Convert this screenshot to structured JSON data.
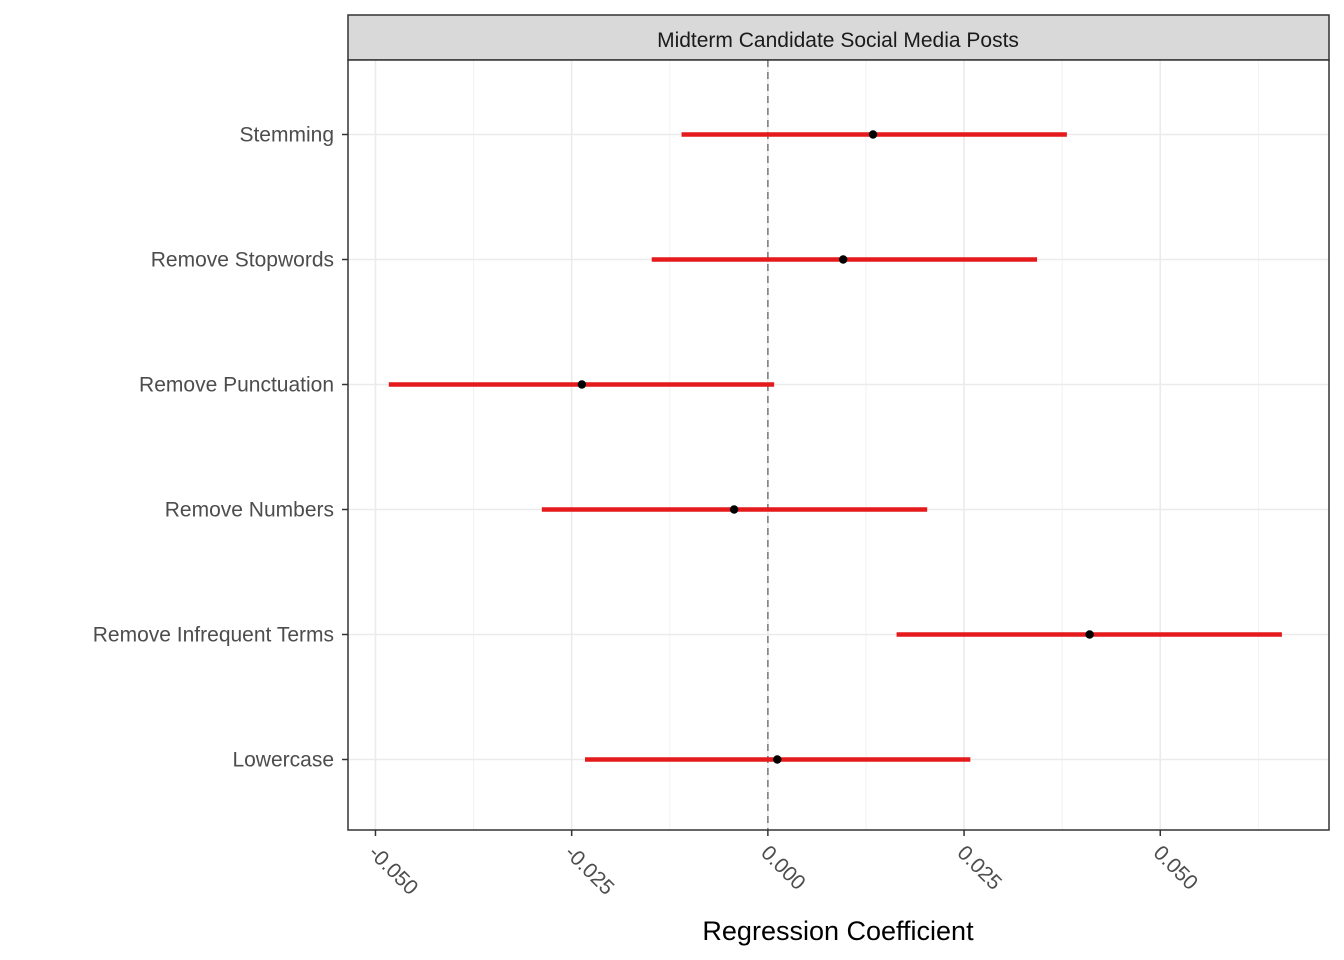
{
  "chart_data": {
    "type": "forest",
    "facet_title": "Midterm Candidate Social Media Posts",
    "xlabel": "Regression Coefficient",
    "ylabel": "",
    "xlim": [
      -0.0535,
      0.0715
    ],
    "x_ticks": [
      -0.05,
      -0.025,
      0.0,
      0.025,
      0.05
    ],
    "x_tick_labels": [
      "-0.050",
      "-0.025",
      "0.000",
      "0.025",
      "0.050"
    ],
    "reference_line": 0,
    "grid": true,
    "point_color": "#000000",
    "interval_color": "#e41a1c",
    "categories": [
      "Stemming",
      "Remove Stopwords",
      "Remove Punctuation",
      "Remove Numbers",
      "Remove Infrequent Terms",
      "Lowercase"
    ],
    "estimates": [
      0.0134,
      0.0096,
      -0.0237,
      -0.0043,
      0.041,
      0.0012
    ],
    "lower": [
      -0.011,
      -0.0148,
      -0.0483,
      -0.0288,
      0.0164,
      -0.0233
    ],
    "upper": [
      0.0381,
      0.0343,
      0.0008,
      0.0203,
      0.0655,
      0.0258
    ]
  }
}
